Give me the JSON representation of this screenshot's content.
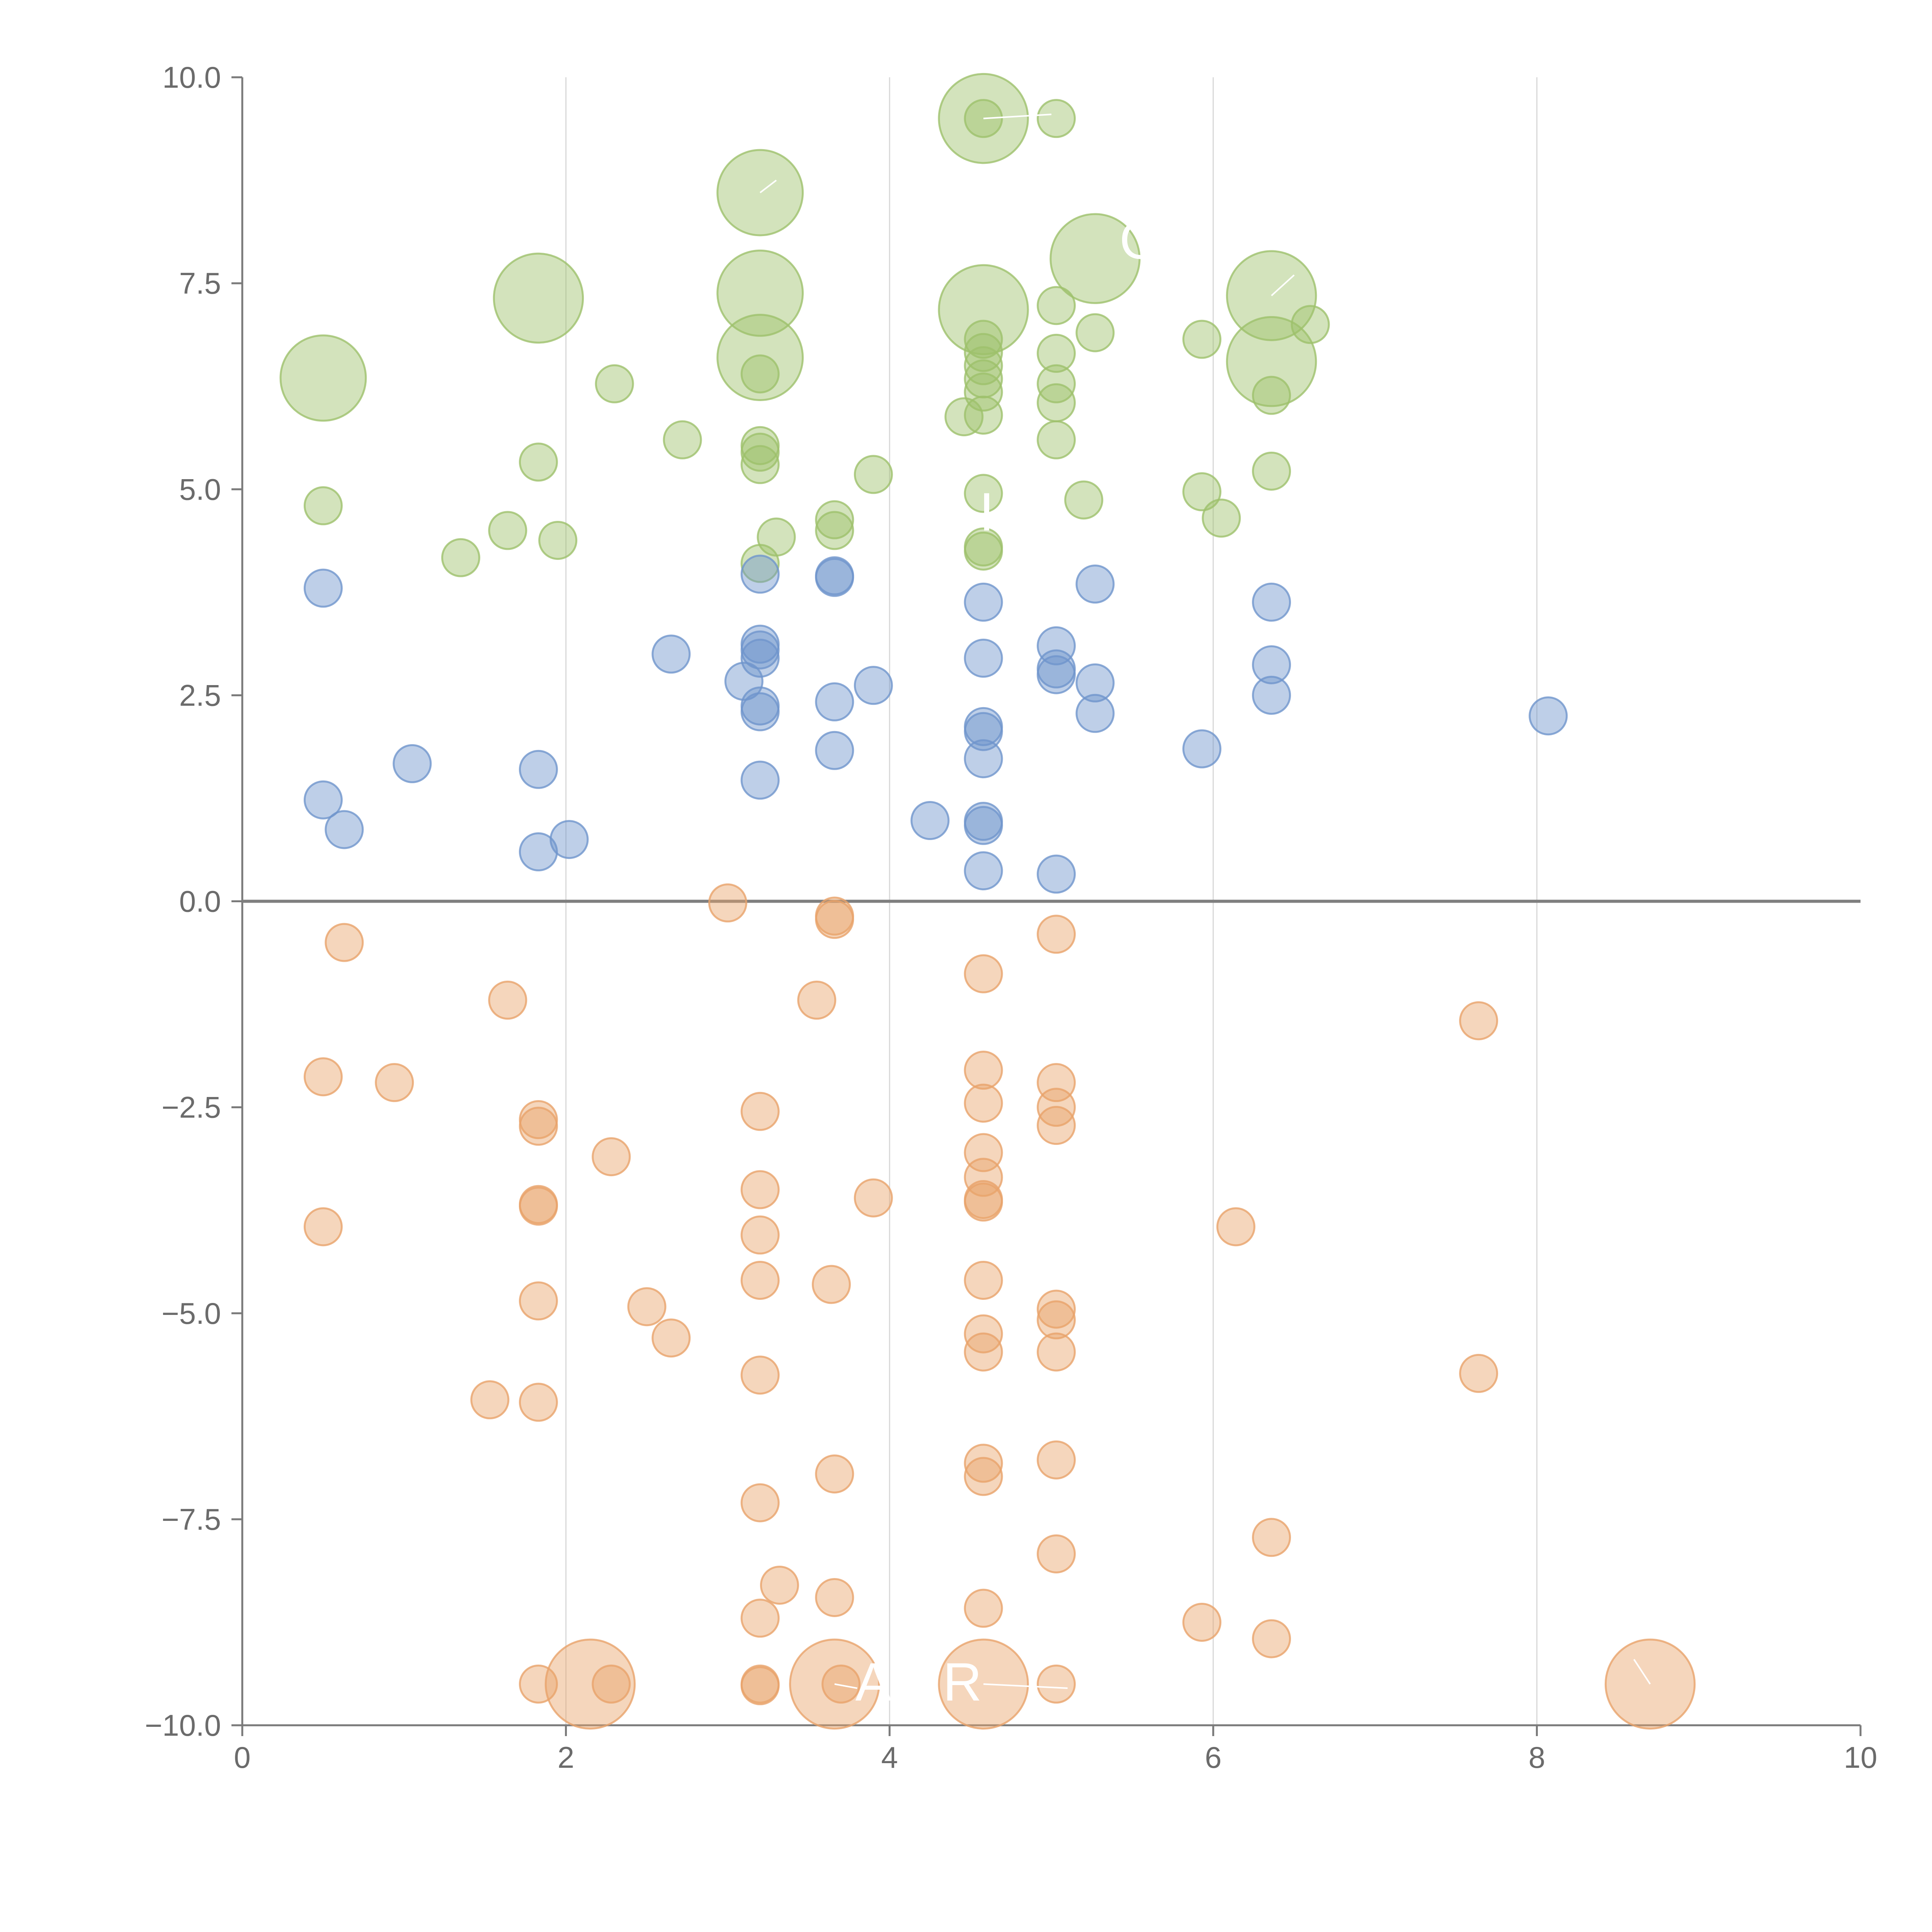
{
  "chart_data": {
    "type": "scatter",
    "title": "",
    "xlabel": "",
    "ylabel": "",
    "xlim": [
      0,
      10
    ],
    "ylim": [
      -10,
      10
    ],
    "x_ticks": [
      0,
      2,
      4,
      6,
      8,
      10
    ],
    "x_tick_labels": [
      "0",
      "2",
      "4",
      "6",
      "8",
      "10"
    ],
    "y_ticks": [
      10,
      7.5,
      5,
      2.5,
      0,
      -2.5,
      -5,
      -7.5,
      -10
    ],
    "y_tick_labels": [
      "10.0",
      "7.5",
      "5.0",
      "2.5",
      "0.0",
      "−2.5",
      "−5.0",
      "−7.5",
      "−10.0"
    ],
    "vertical_gridlines": [
      2,
      4,
      6,
      8
    ],
    "zero_line": true,
    "colors": {
      "green": "#9dc16b",
      "blue": "#6f95cc",
      "orange": "#e8a36a"
    },
    "annotations": [
      {
        "text": "G",
        "x": 5.55,
        "y": 7.8
      },
      {
        "text": "A",
        "x": 3.9,
        "y": -9.7
      },
      {
        "text": "R",
        "x": 4.45,
        "y": -9.7
      },
      {
        "text": "I",
        "x": 4.6,
        "y": 4.5
      }
    ],
    "series": [
      {
        "color": "#9dc16b",
        "points": [
          [
            4.58,
            9.5,
            2.4
          ],
          [
            4.58,
            9.5,
            1
          ],
          [
            5.03,
            9.5,
            1
          ],
          [
            3.2,
            8.6,
            2.3
          ],
          [
            5.27,
            7.8,
            2.4
          ],
          [
            1.83,
            7.32,
            2.4
          ],
          [
            3.2,
            7.38,
            2.3
          ],
          [
            4.58,
            7.18,
            2.4
          ],
          [
            6.36,
            7.35,
            2.4
          ],
          [
            5.03,
            7.23,
            1
          ],
          [
            4.58,
            6.82,
            1
          ],
          [
            4.58,
            6.66,
            1
          ],
          [
            4.58,
            6.5,
            1
          ],
          [
            4.58,
            6.34,
            1
          ],
          [
            4.58,
            6.18,
            1
          ],
          [
            4.58,
            5.9,
            1
          ],
          [
            4.46,
            5.88,
            1
          ],
          [
            6.6,
            7.0,
            1
          ],
          [
            5.27,
            6.9,
            1
          ],
          [
            5.93,
            6.82,
            1
          ],
          [
            5.03,
            6.65,
            1
          ],
          [
            5.03,
            6.28,
            1
          ],
          [
            5.03,
            6.05,
            1
          ],
          [
            5.03,
            5.6,
            1
          ],
          [
            6.36,
            6.55,
            2.4
          ],
          [
            6.36,
            6.14,
            1
          ],
          [
            0.5,
            6.35,
            2.3
          ],
          [
            3.2,
            6.6,
            2.3
          ],
          [
            3.2,
            6.4,
            1
          ],
          [
            2.3,
            6.28,
            1
          ],
          [
            2.72,
            5.6,
            1
          ],
          [
            3.2,
            5.53,
            1
          ],
          [
            3.2,
            5.45,
            1
          ],
          [
            3.2,
            5.3,
            1
          ],
          [
            1.83,
            5.33,
            1
          ],
          [
            3.9,
            5.18,
            1
          ],
          [
            6.36,
            5.22,
            1
          ],
          [
            5.93,
            4.97,
            1
          ],
          [
            4.58,
            4.95,
            1
          ],
          [
            5.2,
            4.87,
            1
          ],
          [
            0.5,
            4.8,
            1
          ],
          [
            3.66,
            4.63,
            1
          ],
          [
            3.66,
            4.5,
            1
          ],
          [
            6.05,
            4.65,
            1
          ],
          [
            1.64,
            4.5,
            1
          ],
          [
            3.3,
            4.42,
            1
          ],
          [
            1.95,
            4.38,
            1
          ],
          [
            4.58,
            4.3,
            1
          ],
          [
            4.58,
            4.25,
            1
          ],
          [
            1.35,
            4.17,
            1
          ],
          [
            3.2,
            4.1,
            1
          ]
        ]
      },
      {
        "color": "#6f95cc",
        "points": [
          [
            3.2,
            3.97,
            1
          ],
          [
            3.66,
            3.95,
            1
          ],
          [
            3.66,
            3.93,
            1
          ],
          [
            5.27,
            3.85,
            1
          ],
          [
            0.5,
            3.8,
            1
          ],
          [
            4.58,
            3.63,
            1
          ],
          [
            6.36,
            3.63,
            1
          ],
          [
            3.2,
            3.12,
            1
          ],
          [
            3.2,
            3.05,
            1
          ],
          [
            3.2,
            2.95,
            1
          ],
          [
            5.03,
            3.1,
            1
          ],
          [
            2.65,
            3.0,
            1
          ],
          [
            4.58,
            2.95,
            1
          ],
          [
            6.36,
            2.87,
            1
          ],
          [
            5.03,
            2.82,
            1
          ],
          [
            5.03,
            2.75,
            1
          ],
          [
            3.1,
            2.67,
            1
          ],
          [
            5.27,
            2.65,
            1
          ],
          [
            3.9,
            2.62,
            1
          ],
          [
            6.36,
            2.5,
            1
          ],
          [
            3.66,
            2.42,
            1
          ],
          [
            3.2,
            2.37,
            1
          ],
          [
            3.2,
            2.3,
            1
          ],
          [
            5.27,
            2.28,
            1
          ],
          [
            8.07,
            2.25,
            1
          ],
          [
            4.58,
            2.12,
            1
          ],
          [
            4.58,
            2.06,
            1
          ],
          [
            5.93,
            1.85,
            1
          ],
          [
            3.66,
            1.83,
            1
          ],
          [
            4.58,
            1.73,
            1
          ],
          [
            1.05,
            1.67,
            1
          ],
          [
            1.83,
            1.6,
            1
          ],
          [
            3.2,
            1.47,
            1
          ],
          [
            0.5,
            1.23,
            1
          ],
          [
            4.25,
            0.98,
            1
          ],
          [
            4.58,
            0.97,
            1
          ],
          [
            4.58,
            0.92,
            1
          ],
          [
            0.63,
            0.87,
            1
          ],
          [
            2.02,
            0.75,
            1
          ],
          [
            1.83,
            0.6,
            1
          ],
          [
            4.58,
            0.37,
            1
          ],
          [
            5.03,
            0.33,
            1
          ]
        ]
      },
      {
        "color": "#e8a36a",
        "points": [
          [
            3.0,
            -0.02,
            1
          ],
          [
            3.66,
            -0.18,
            1
          ],
          [
            3.66,
            -0.22,
            1
          ],
          [
            5.03,
            -0.4,
            1
          ],
          [
            0.63,
            -0.5,
            1
          ],
          [
            4.58,
            -0.88,
            1
          ],
          [
            1.64,
            -1.2,
            1
          ],
          [
            3.55,
            -1.2,
            1
          ],
          [
            7.64,
            -1.45,
            1
          ],
          [
            4.58,
            -2.05,
            1
          ],
          [
            0.5,
            -2.13,
            1
          ],
          [
            0.94,
            -2.2,
            1
          ],
          [
            5.03,
            -2.2,
            1
          ],
          [
            4.58,
            -2.45,
            1
          ],
          [
            5.03,
            -2.5,
            1
          ],
          [
            3.2,
            -2.55,
            1
          ],
          [
            1.83,
            -2.65,
            1
          ],
          [
            1.83,
            -2.73,
            1
          ],
          [
            5.03,
            -2.72,
            1
          ],
          [
            4.58,
            -3.05,
            1
          ],
          [
            2.28,
            -3.1,
            1
          ],
          [
            4.58,
            -3.35,
            1
          ],
          [
            3.2,
            -3.5,
            1
          ],
          [
            3.9,
            -3.6,
            1
          ],
          [
            4.58,
            -3.62,
            1
          ],
          [
            4.58,
            -3.65,
            1
          ],
          [
            1.83,
            -3.68,
            1
          ],
          [
            1.83,
            -3.7,
            1
          ],
          [
            6.14,
            -3.95,
            1
          ],
          [
            0.5,
            -3.95,
            1
          ],
          [
            3.2,
            -4.05,
            1
          ],
          [
            4.58,
            -4.6,
            1
          ],
          [
            3.2,
            -4.6,
            1
          ],
          [
            3.64,
            -4.65,
            1
          ],
          [
            1.83,
            -4.85,
            1
          ],
          [
            5.03,
            -4.95,
            1
          ],
          [
            2.5,
            -4.92,
            1
          ],
          [
            5.03,
            -5.08,
            1
          ],
          [
            4.58,
            -5.25,
            1
          ],
          [
            2.65,
            -5.3,
            1
          ],
          [
            4.58,
            -5.47,
            1
          ],
          [
            5.03,
            -5.47,
            1
          ],
          [
            7.64,
            -5.73,
            1
          ],
          [
            3.2,
            -5.75,
            1
          ],
          [
            1.53,
            -6.05,
            1
          ],
          [
            1.83,
            -6.08,
            1
          ],
          [
            5.03,
            -6.78,
            1
          ],
          [
            4.58,
            -6.82,
            1
          ],
          [
            4.58,
            -6.98,
            1
          ],
          [
            3.66,
            -6.95,
            1
          ],
          [
            3.2,
            -7.3,
            1
          ],
          [
            6.36,
            -7.72,
            1
          ],
          [
            5.03,
            -7.92,
            1
          ],
          [
            3.32,
            -8.3,
            1
          ],
          [
            3.66,
            -8.45,
            1
          ],
          [
            4.58,
            -8.58,
            1
          ],
          [
            3.2,
            -8.7,
            1
          ],
          [
            5.93,
            -8.75,
            1
          ],
          [
            6.36,
            -8.95,
            1
          ],
          [
            1.83,
            -9.5,
            1
          ],
          [
            2.15,
            -9.5,
            2.4
          ],
          [
            2.28,
            -9.5,
            1
          ],
          [
            3.2,
            -9.5,
            1
          ],
          [
            3.2,
            -9.52,
            1
          ],
          [
            3.66,
            -9.5,
            2.4
          ],
          [
            3.7,
            -9.5,
            1
          ],
          [
            4.58,
            -9.5,
            2.4
          ],
          [
            5.03,
            -9.5,
            1
          ],
          [
            8.7,
            -9.5,
            2.4
          ]
        ]
      }
    ]
  }
}
